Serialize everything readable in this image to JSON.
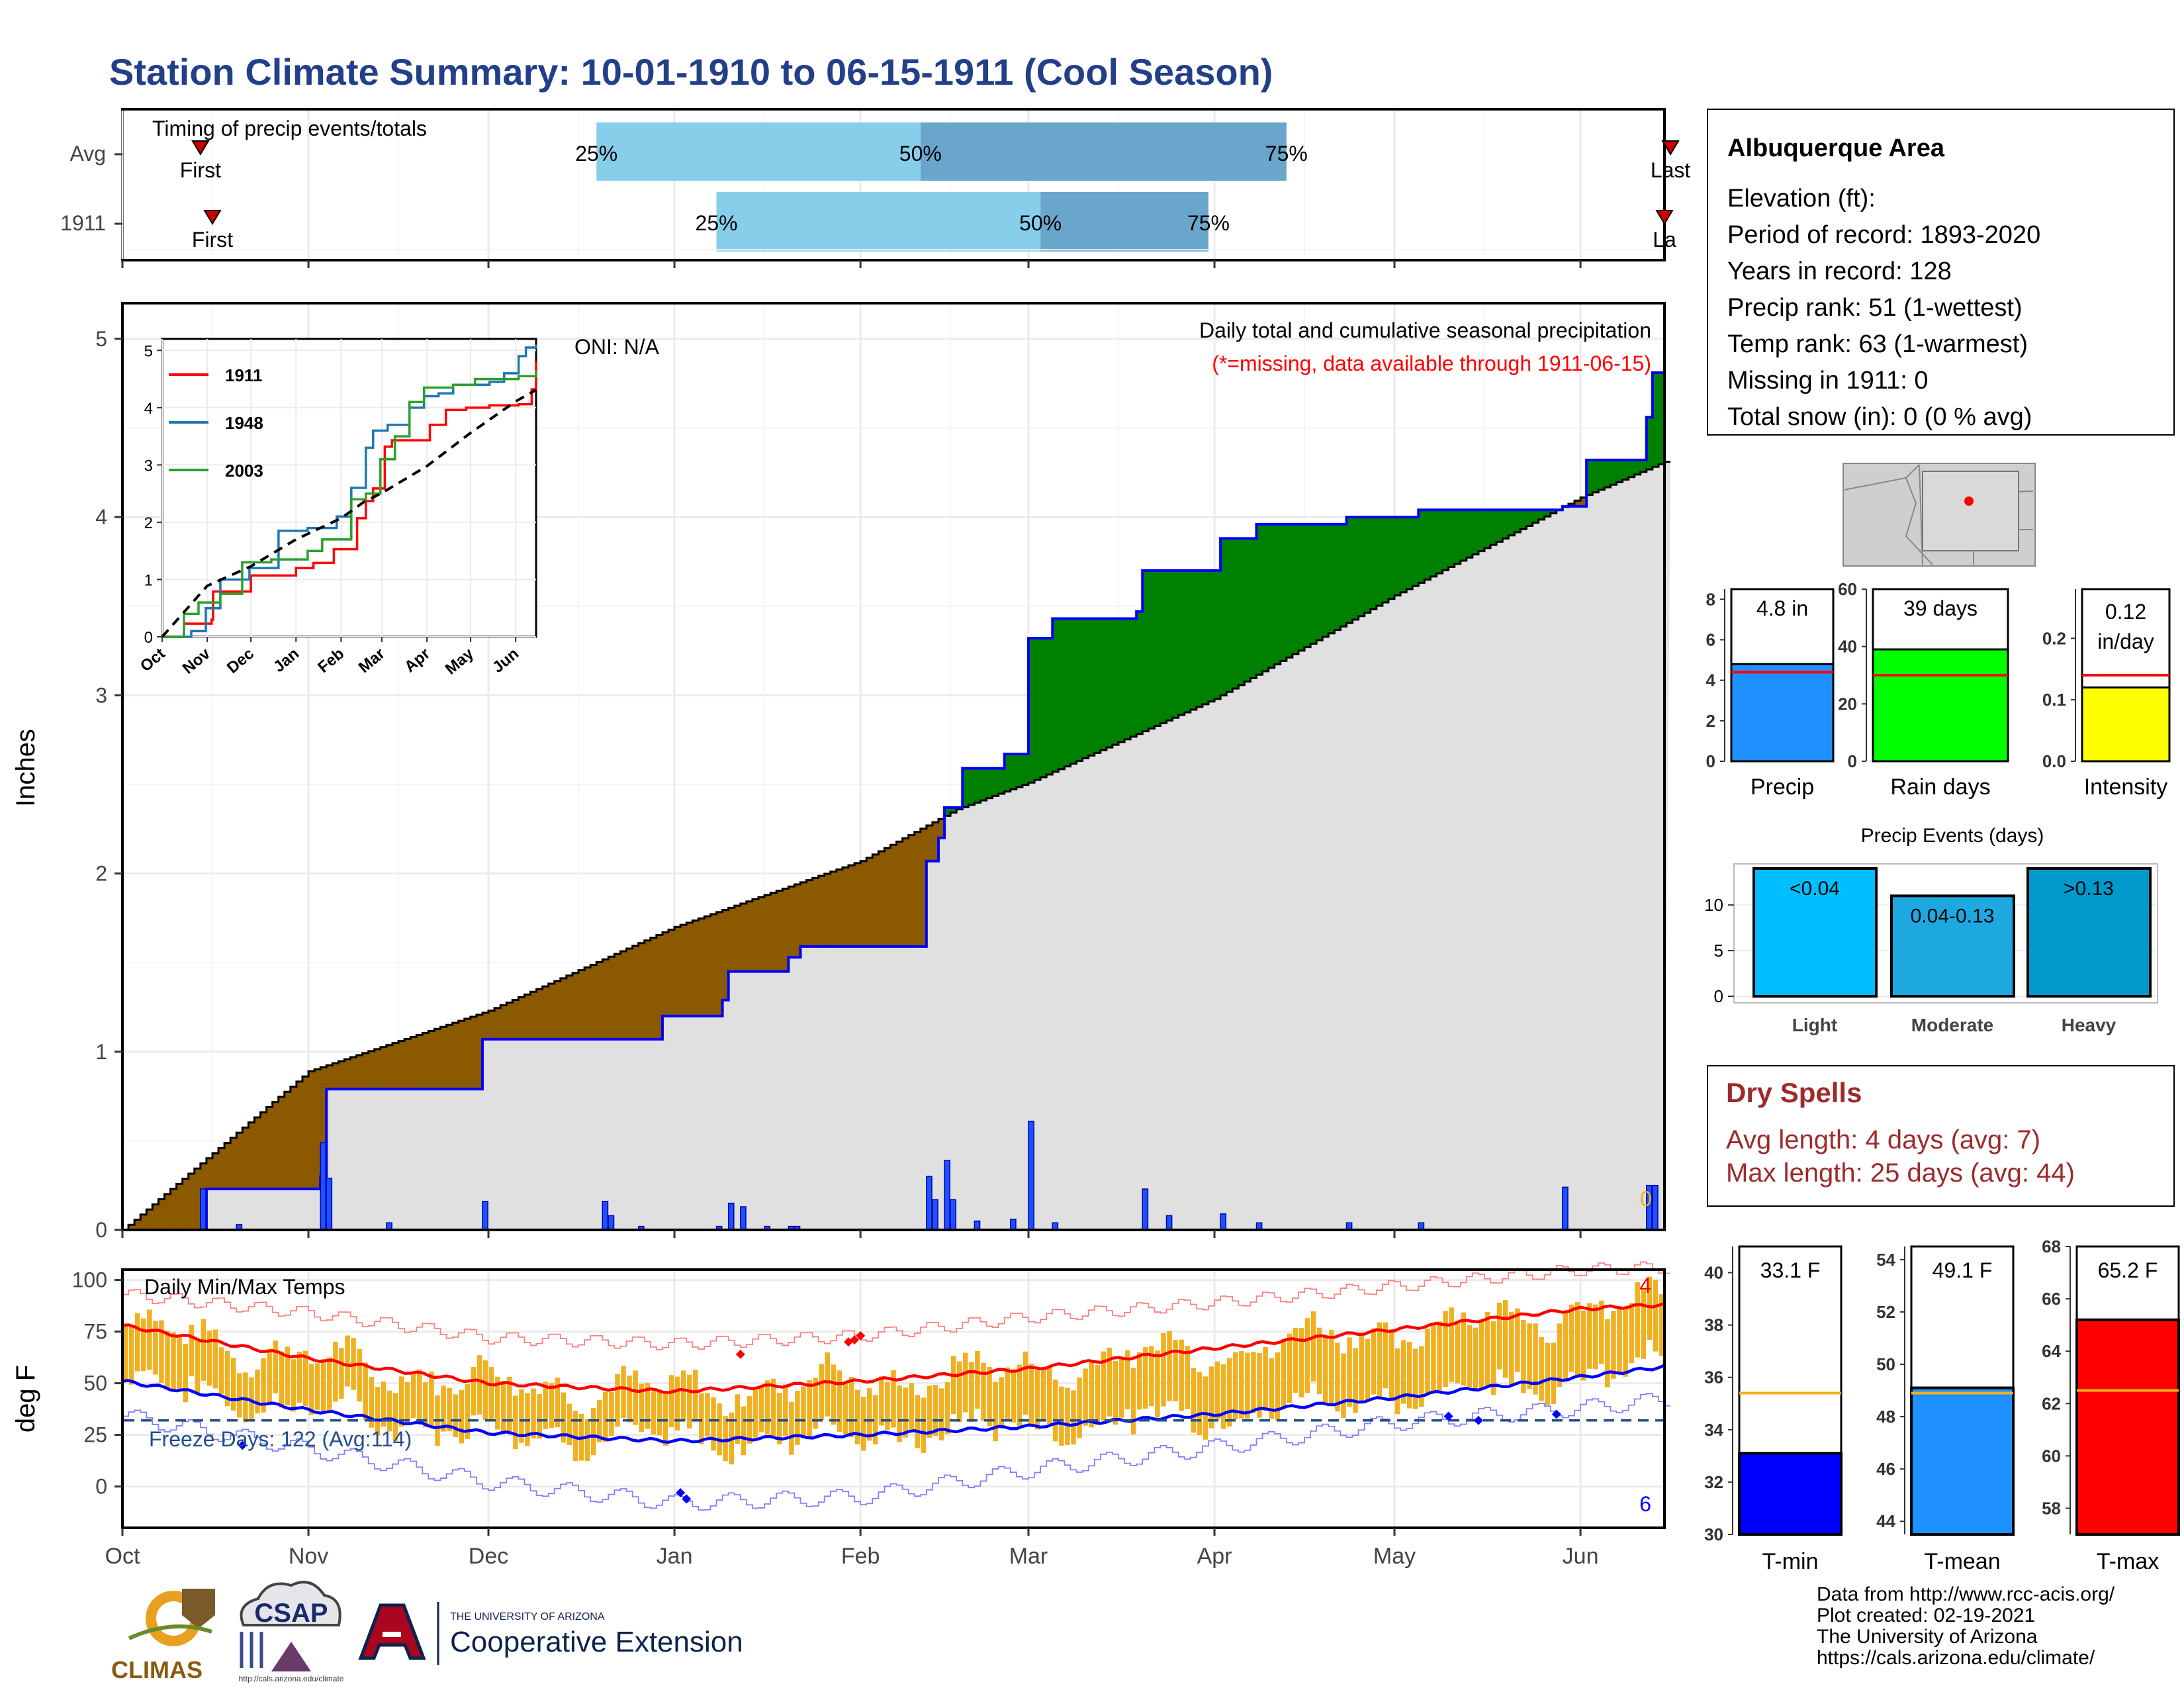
{
  "title": "Station Climate Summary: 10-01-1910 to 06-15-1911 (Cool Season)",
  "colors": {
    "title": "#243f8a",
    "bar25": "#87ceeb",
    "bar50": "#6aa6cc",
    "precip_fill": "#1e90ff",
    "rain_fill": "#00ff00",
    "intensity_fill": "#ffff00",
    "wet": "#008000",
    "dry": "#8b5a00",
    "normal_fill": "#e0e0e0",
    "obs_line": "#0000ff",
    "tmin": "#0000ff",
    "tmean": "#1e90ff",
    "tmax": "#ff0000",
    "bars_temp": "#f0b020",
    "dry_spells": "#9e2a2b"
  },
  "timing": {
    "label": "Timing of precip events/totals",
    "rows": [
      {
        "name": "Avg",
        "first_label": "First",
        "last_label": "Last",
        "p25": "25%",
        "p50": "50%",
        "p75": "75%"
      },
      {
        "name": "1911",
        "first_label": "First",
        "last_label": "La",
        "p25": "25%",
        "p50": "50%",
        "p75": "75%"
      }
    ]
  },
  "precip_panel": {
    "ylabel": "Inches",
    "oni": "ONI: N/A",
    "subtitle": "Daily total and cumulative seasonal precipitation",
    "missing_note": "(*=missing, data available through 1911-06-15)",
    "missing_count": "0",
    "yticks": [
      "0",
      "1",
      "2",
      "3",
      "4",
      "5"
    ]
  },
  "inset": {
    "legend": [
      "1911",
      "1948",
      "2003"
    ],
    "yticks": [
      "0",
      "1",
      "2",
      "3",
      "4",
      "5"
    ],
    "xticks": [
      "Oct",
      "Nov",
      "Dec",
      "Jan",
      "Feb",
      "Mar",
      "Apr",
      "May",
      "Jun"
    ]
  },
  "months": [
    "Oct",
    "Nov",
    "Dec",
    "Jan",
    "Feb",
    "Mar",
    "Apr",
    "May",
    "Jun"
  ],
  "temp_panel": {
    "ylabel": "deg F",
    "label": "Daily Min/Max Temps",
    "freeze": "Freeze Days: 122 (Avg:114)",
    "top_count": "4",
    "bottom_count": "6",
    "yticks": [
      "0",
      "25",
      "50",
      "75",
      "100"
    ]
  },
  "info": {
    "station": "Albuquerque Area",
    "lines": [
      "Elevation (ft):",
      "Period of record: 1893-2020",
      "Years in record: 128",
      "Precip rank: 51 (1-wettest)",
      "Temp rank: 63 (1-warmest)",
      "Missing in 1911: 0",
      "Total snow (in): 0 (0 % avg)"
    ]
  },
  "summary_bars": [
    {
      "label": "Precip",
      "value_text": "4.8 in",
      "yticks": [
        "0",
        "2",
        "4",
        "6",
        "8"
      ]
    },
    {
      "label": "Rain days",
      "value_text": "39 days",
      "yticks": [
        "0",
        "20",
        "40",
        "60"
      ]
    },
    {
      "label": "Intensity",
      "value_text": "0.12",
      "value_text2": "in/day",
      "yticks": [
        "0.0",
        "0.1",
        "0.2"
      ]
    }
  ],
  "events": {
    "title": "Precip Events (days)",
    "yticks": [
      "0",
      "5",
      "10"
    ],
    "bars": [
      {
        "label": "Light",
        "range": "<0.04"
      },
      {
        "label": "Moderate",
        "range": "0.04-0.13"
      },
      {
        "label": "Heavy",
        "range": ">0.13"
      }
    ]
  },
  "dry_spells": {
    "title": "Dry Spells",
    "avg": "Avg length: 4 days (avg: 7)",
    "max": "Max length: 25 days (avg: 44)"
  },
  "temp_bars": [
    {
      "label": "T-min",
      "value_text": "33.1 F",
      "yticks": [
        "30",
        "32",
        "34",
        "36",
        "38",
        "40"
      ]
    },
    {
      "label": "T-mean",
      "value_text": "49.1 F",
      "yticks": [
        "44",
        "46",
        "48",
        "50",
        "52",
        "54"
      ]
    },
    {
      "label": "T-max",
      "value_text": "65.2 F",
      "yticks": [
        "58",
        "60",
        "62",
        "64",
        "66",
        "68"
      ]
    }
  ],
  "footer": {
    "lines": [
      "Data from http://www.rcc-acis.org/",
      "Plot created: 02-19-2021",
      "The University of Arizona",
      "https://cals.arizona.edu/climate/"
    ],
    "climas": "CLIMAS",
    "csap": "CSAP",
    "csap_url": "http://cals.arizona.edu/climate",
    "ua_small": "THE UNIVERSITY OF ARIZONA",
    "ua_big": "Cooperative Extension"
  },
  "chart_data": [
    {
      "type": "bar",
      "title": "Timing of precip events/totals",
      "categories": [
        "Avg",
        "1911"
      ],
      "series": [
        {
          "name": "Avg",
          "first_day": 13,
          "p25": 79,
          "p50": 133,
          "p75": 194,
          "last_day": 258
        },
        {
          "name": "1911",
          "first_day": 15,
          "p25": 99,
          "p50": 153,
          "p75": 181,
          "last_day": 257
        }
      ]
    },
    {
      "type": "area",
      "title": "Daily total and cumulative seasonal precipitation",
      "ylabel": "Inches",
      "ylim": [
        0,
        5.2
      ],
      "x_range": [
        "1910-10-01",
        "1911-06-15"
      ],
      "normal_cumulative": {
        "x": [
          "1910-10-01",
          "1910-11-01",
          "1910-12-01",
          "1911-01-01",
          "1911-02-01",
          "1911-02-17",
          "1911-03-01",
          "1911-04-01",
          "1911-05-01",
          "1911-06-01",
          "1911-06-15"
        ],
        "y": [
          0,
          0.89,
          1.23,
          1.7,
          2.07,
          2.36,
          2.51,
          2.98,
          3.56,
          4.11,
          4.31
        ]
      },
      "observed_cumulative": {
        "x": [
          "1910-10-01",
          "1910-10-14",
          "1910-10-15",
          "1910-11-03",
          "1910-11-04",
          "1910-11-30",
          "1910-12-30",
          "1911-01-09",
          "1911-01-10",
          "1911-01-20",
          "1911-01-22",
          "1911-02-12",
          "1911-02-14",
          "1911-02-15",
          "1911-02-18",
          "1911-02-25",
          "1911-03-01",
          "1911-03-05",
          "1911-03-19",
          "1911-03-20",
          "1911-04-02",
          "1911-04-08",
          "1911-04-23",
          "1911-05-05",
          "1911-05-29",
          "1911-06-02",
          "1911-06-12",
          "1911-06-13"
        ],
        "y": [
          0,
          0,
          0.23,
          0.3,
          0.79,
          1.07,
          1.2,
          1.29,
          1.45,
          1.53,
          1.59,
          2.07,
          2.2,
          2.37,
          2.59,
          2.67,
          3.32,
          3.43,
          3.47,
          3.7,
          3.88,
          3.96,
          4.0,
          4.04,
          4.06,
          4.32,
          4.56,
          4.81
        ]
      },
      "daily": {
        "x": [
          "1910-10-14",
          "1910-10-20",
          "1910-11-03",
          "1910-11-04",
          "1910-11-14",
          "1910-11-30",
          "1910-12-20",
          "1910-12-21",
          "1910-12-26",
          "1911-01-08",
          "1911-01-10",
          "1911-01-12",
          "1911-01-16",
          "1911-01-20",
          "1911-01-21",
          "1911-02-12",
          "1911-02-13",
          "1911-02-15",
          "1911-02-16",
          "1911-02-20",
          "1911-02-26",
          "1911-03-01",
          "1911-03-05",
          "1911-03-20",
          "1911-03-24",
          "1911-04-02",
          "1911-04-08",
          "1911-04-23",
          "1911-05-05",
          "1911-05-29",
          "1911-06-12",
          "1911-06-13"
        ],
        "y": [
          0.23,
          0.03,
          0.49,
          0.29,
          0.04,
          0.16,
          0.16,
          0.08,
          0.02,
          0.02,
          0.15,
          0.13,
          0.02,
          0.02,
          0.02,
          0.3,
          0.17,
          0.39,
          0.17,
          0.05,
          0.06,
          0.61,
          0.04,
          0.23,
          0.08,
          0.09,
          0.04,
          0.04,
          0.04,
          0.24,
          0.25,
          0.25
        ]
      }
    },
    {
      "type": "line",
      "title": "",
      "legend": [
        "1911",
        "1948",
        "2003"
      ],
      "ylim": [
        0,
        5.2
      ],
      "series": [
        {
          "name": "1911",
          "x": [
            0,
            13,
            15,
            34,
            35,
            61,
            92,
            104,
            118,
            134,
            140,
            145,
            153,
            158,
            184,
            195,
            209,
            225,
            245,
            254,
            257
          ],
          "y": [
            0,
            0,
            0.23,
            0.3,
            0.79,
            1.07,
            1.2,
            1.29,
            1.53,
            2.07,
            2.37,
            2.59,
            3.32,
            3.43,
            3.7,
            3.96,
            4.0,
            4.04,
            4.06,
            4.32,
            4.81
          ]
        },
        {
          "name": "1948",
          "x": [
            0,
            20,
            30,
            40,
            60,
            80,
            100,
            120,
            130,
            140,
            145,
            155,
            170,
            180,
            190,
            200,
            215,
            225,
            235,
            245,
            250,
            257
          ],
          "y": [
            0,
            0.1,
            0.5,
            1.0,
            1.2,
            1.85,
            1.9,
            2.1,
            2.6,
            3.3,
            3.6,
            3.7,
            4.0,
            4.2,
            4.25,
            4.4,
            4.4,
            4.45,
            4.6,
            4.9,
            5.05,
            5.1
          ]
        },
        {
          "name": "2003",
          "x": [
            0,
            15,
            25,
            40,
            55,
            75,
            100,
            110,
            130,
            140,
            150,
            160,
            170,
            180,
            200,
            215,
            230,
            245,
            257
          ],
          "y": [
            0,
            0.4,
            0.6,
            0.75,
            1.3,
            1.35,
            1.5,
            1.7,
            2.4,
            2.5,
            3.1,
            3.5,
            4.1,
            4.35,
            4.4,
            4.5,
            4.5,
            4.55,
            4.65
          ]
        },
        {
          "name": "normal",
          "x": [
            0,
            31,
            61,
            92,
            123,
            139,
            151,
            182,
            212,
            243,
            257
          ],
          "y": [
            0,
            0.89,
            1.23,
            1.7,
            2.07,
            2.36,
            2.51,
            2.98,
            3.56,
            4.11,
            4.31
          ]
        }
      ]
    },
    {
      "type": "line",
      "title": "Daily Min/Max Temps",
      "ylabel": "deg F",
      "ylim": [
        -20,
        105
      ],
      "freeze_threshold": 32,
      "avg_max": {
        "x": [
          "1910-10-01",
          "1910-11-01",
          "1910-12-01",
          "1911-01-01",
          "1911-02-01",
          "1911-03-01",
          "1911-04-01",
          "1911-05-01",
          "1911-06-01",
          "1911-06-15"
        ],
        "y": [
          78,
          62,
          50,
          46,
          51,
          57,
          67,
          76,
          86,
          88
        ]
      },
      "avg_min": {
        "x": [
          "1910-10-01",
          "1910-11-01",
          "1910-12-01",
          "1911-01-01",
          "1911-02-01",
          "1911-03-01",
          "1911-04-01",
          "1911-05-01",
          "1911-06-01",
          "1911-06-15"
        ],
        "y": [
          51,
          37,
          26,
          22,
          25,
          29,
          35,
          43,
          53,
          58
        ]
      },
      "record_max": {
        "x": [
          "1910-10-01",
          "1910-11-01",
          "1910-12-01",
          "1911-01-01",
          "1911-02-01",
          "1911-03-01",
          "1911-04-01",
          "1911-05-01",
          "1911-06-01",
          "1911-06-15"
        ],
        "y": [
          93,
          84,
          72,
          69,
          73,
          82,
          89,
          97,
          105,
          106
        ]
      },
      "record_min": {
        "x": [
          "1910-10-01",
          "1910-11-01",
          "1910-12-01",
          "1911-01-01",
          "1911-02-01",
          "1911-03-01",
          "1911-04-01",
          "1911-05-01",
          "1911-06-01",
          "1911-06-15"
        ],
        "y": [
          34,
          18,
          2,
          -8,
          -5,
          8,
          19,
          31,
          38,
          42
        ]
      },
      "record_highs": [
        [
          "1911-01-31",
          71
        ],
        [
          "1911-02-01",
          73
        ],
        [
          "1911-01-12",
          64
        ],
        [
          "1911-01-30",
          70
        ]
      ],
      "record_lows": [
        [
          "1910-10-21",
          20
        ],
        [
          "1911-01-02",
          -3
        ],
        [
          "1911-01-03",
          -6
        ],
        [
          "1911-05-10",
          34
        ],
        [
          "1911-05-15",
          32
        ],
        [
          "1911-05-28",
          35
        ]
      ]
    },
    {
      "type": "bar",
      "title": "",
      "categories": [
        "Precip",
        "Rain days",
        "Intensity"
      ],
      "series": [
        {
          "name": "1911",
          "values": [
            4.8,
            39,
            0.12
          ]
        },
        {
          "name": "avg",
          "values": [
            4.4,
            30,
            0.14
          ]
        }
      ],
      "ylims": [
        [
          0,
          8.5
        ],
        [
          0,
          60
        ],
        [
          0,
          0.28
        ]
      ]
    },
    {
      "type": "bar",
      "title": "Precip Events (days)",
      "categories": [
        "Light",
        "Moderate",
        "Heavy"
      ],
      "values": [
        14,
        11,
        14
      ],
      "ylim": [
        0,
        14
      ]
    },
    {
      "type": "bar",
      "title": "",
      "categories": [
        "T-min",
        "T-mean",
        "T-max"
      ],
      "series": [
        {
          "name": "1911",
          "values": [
            33.1,
            49.1,
            65.2
          ]
        },
        {
          "name": "avg",
          "values": [
            35.4,
            48.9,
            62.5
          ]
        }
      ],
      "ylims": [
        [
          30,
          41
        ],
        [
          43.5,
          54.5
        ],
        [
          57,
          68
        ]
      ]
    }
  ]
}
